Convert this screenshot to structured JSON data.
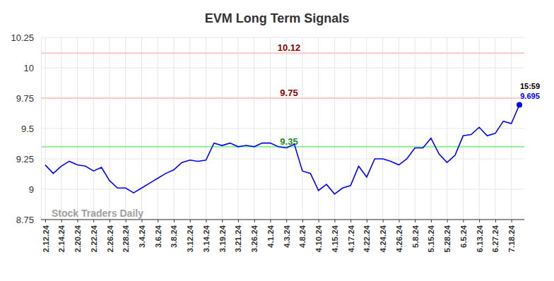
{
  "chart_data": {
    "type": "line",
    "title": "EVM Long Term Signals",
    "categories": [
      "2.12.24",
      null,
      "2.14.24",
      null,
      "2.20.24",
      null,
      "2.22.24",
      null,
      "2.26.24",
      null,
      "2.28.24",
      null,
      "3.4.24",
      null,
      "3.6.24",
      null,
      "3.8.24",
      null,
      "3.12.24",
      null,
      "3.14.24",
      null,
      "3.19.24",
      null,
      "3.21.24",
      null,
      "3.26.24",
      null,
      "4.1.24",
      null,
      "4.3.24",
      null,
      "4.8.24",
      null,
      "4.10.24",
      null,
      "4.15.24",
      null,
      "4.17.24",
      null,
      "4.22.24",
      null,
      "4.24.24",
      null,
      "4.26.24",
      null,
      "5.8.24",
      null,
      "5.15.24",
      null,
      "5.28.24",
      null,
      "6.5.24",
      null,
      "6.13.24",
      null,
      "6.27.24",
      null,
      "7.18.24",
      null
    ],
    "values": [
      9.2,
      9.13,
      9.19,
      9.23,
      9.2,
      9.19,
      9.15,
      9.18,
      9.07,
      9.01,
      9.01,
      8.97,
      9.01,
      9.05,
      9.09,
      9.13,
      9.16,
      9.22,
      9.24,
      9.23,
      9.24,
      9.38,
      9.36,
      9.38,
      9.35,
      9.36,
      9.35,
      9.38,
      9.38,
      9.35,
      9.34,
      9.37,
      9.15,
      9.13,
      8.99,
      9.04,
      8.96,
      9.01,
      9.03,
      9.19,
      9.1,
      9.25,
      9.25,
      9.23,
      9.2,
      9.25,
      9.34,
      9.34,
      9.42,
      9.29,
      9.22,
      9.28,
      9.44,
      9.45,
      9.51,
      9.44,
      9.46,
      9.56,
      9.54,
      9.695
    ],
    "color": "#0000ff",
    "ylim": [
      8.75,
      10.25
    ],
    "yticks": [
      8.75,
      9,
      9.25,
      9.5,
      9.75,
      10,
      10.25
    ],
    "grid": true,
    "reference_lines": [
      {
        "value": 10.12,
        "color": "#8b0000"
      },
      {
        "value": 9.75,
        "color": "#8b0000"
      },
      {
        "value": 9.35,
        "color": "#1a8a1a"
      }
    ],
    "time_label": "15:59",
    "watermark": "Stock Traders Daily"
  }
}
